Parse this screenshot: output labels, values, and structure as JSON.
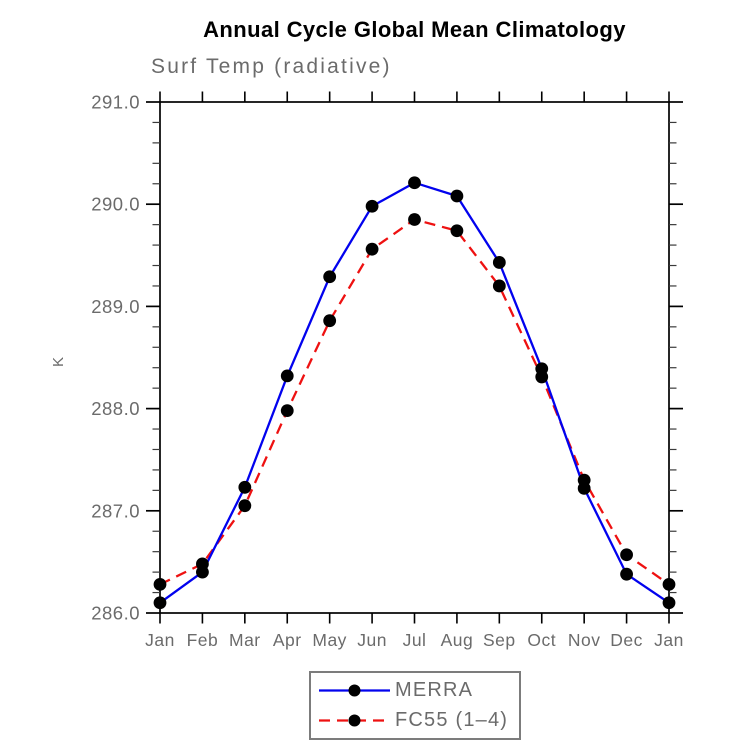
{
  "header": {
    "title": "Annual Cycle Global Mean Climatology",
    "subtitle": "Surf Temp (radiative)"
  },
  "chart_data": {
    "type": "line",
    "title": "Annual Cycle Global Mean Climatology",
    "subtitle": "Surf Temp (radiative)",
    "xlabel": "",
    "ylabel": "K",
    "x_tick_labels": [
      "Jan",
      "Feb",
      "Mar",
      "Apr",
      "May",
      "Jun",
      "Jul",
      "Aug",
      "Sep",
      "Oct",
      "Nov",
      "Dec",
      "Jan"
    ],
    "y_ticks": [
      286.0,
      287.0,
      288.0,
      289.0,
      290.0,
      291.0
    ],
    "y_tick_labels": [
      "286.0",
      "287.0",
      "288.0",
      "289.0",
      "290.0",
      "291.0"
    ],
    "ylim": [
      286.0,
      291.0
    ],
    "y_minor_step": 0.2,
    "grid": false,
    "legend_position": "bottom-center",
    "series": [
      {
        "name": "MERRA",
        "color": "#0202ee",
        "style": "solid",
        "marker": "circle",
        "marker_color": "#000000",
        "values": [
          286.1,
          286.4,
          287.23,
          288.32,
          289.29,
          289.98,
          290.21,
          290.08,
          289.43,
          288.39,
          287.22,
          286.38,
          286.1
        ]
      },
      {
        "name": "FC55 (1–4)",
        "color": "#ee1111",
        "style": "dashed",
        "marker": "circle",
        "marker_color": "#000000",
        "values": [
          286.28,
          286.48,
          287.05,
          287.98,
          288.86,
          289.56,
          289.85,
          289.74,
          289.2,
          288.31,
          287.3,
          286.57,
          286.28
        ]
      }
    ]
  },
  "colors": {
    "frame": "#000000",
    "tick_major": "#000000",
    "tick_minor": "#3a3a3a",
    "axis_text": "#6b6b6b",
    "title_text": "#000000"
  }
}
